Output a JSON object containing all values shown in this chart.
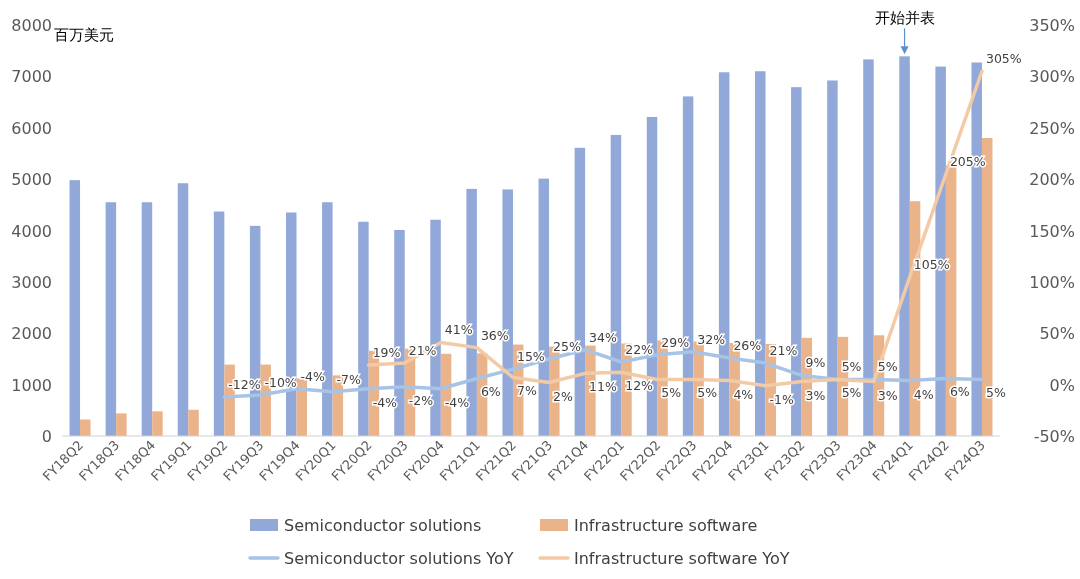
{
  "chart_data": {
    "type": "bar",
    "ylabel": "百万美元",
    "categories": [
      "FY18Q2",
      "FY18Q3",
      "FY18Q4",
      "FY19Q1",
      "FY19Q2",
      "FY19Q3",
      "FY19Q4",
      "FY20Q1",
      "FY20Q2",
      "FY20Q3",
      "FY20Q4",
      "FY21Q1",
      "FY21Q2",
      "FY21Q3",
      "FY21Q4",
      "FY22Q1",
      "FY22Q2",
      "FY22Q3",
      "FY22Q4",
      "FY23Q1",
      "FY23Q2",
      "FY23Q3",
      "FY23Q4",
      "FY24Q1",
      "FY24Q2",
      "FY24Q3"
    ],
    "series": [
      {
        "name": "Semiconductor solutions",
        "color": "#91a8d9",
        "values": [
          4980,
          4550,
          4550,
          4920,
          4370,
          4090,
          4350,
          4550,
          4170,
          4010,
          4210,
          4810,
          4800,
          5010,
          5610,
          5860,
          6210,
          6610,
          7080,
          7100,
          6790,
          6920,
          7330,
          7390,
          7190,
          7270
        ]
      },
      {
        "name": "Infrastructure software",
        "color": "#eab38a",
        "values": [
          320,
          440,
          480,
          510,
          1390,
          1390,
          1120,
          1180,
          1660,
          1700,
          1600,
          1610,
          1780,
          1740,
          1760,
          1800,
          1860,
          1840,
          1810,
          1790,
          1910,
          1930,
          1960,
          4570,
          5270,
          5800
        ]
      },
      {
        "name": "Semiconductor solutions YoY",
        "type": "line",
        "axis": "y2",
        "color": "#a7c3e6",
        "values": [
          null,
          null,
          null,
          null,
          -12,
          -10,
          -4,
          -7,
          -4,
          -2,
          -4,
          6,
          15,
          25,
          34,
          22,
          29,
          32,
          26,
          21,
          9,
          5,
          5,
          4,
          6,
          5
        ],
        "value_labels": [
          null,
          null,
          null,
          null,
          "-12%",
          "-10%",
          "-4%",
          "-7%",
          "-4%",
          "-2%",
          "-4%",
          "6%",
          "15%",
          "25%",
          "34%",
          "22%",
          "29%",
          "32%",
          "26%",
          "21%",
          "9%",
          "5%",
          "5%",
          "4%",
          "6%",
          "5%"
        ]
      },
      {
        "name": "Infrastructure software YoY",
        "type": "line",
        "axis": "y2",
        "color": "#f3caa6",
        "values": [
          null,
          null,
          null,
          null,
          null,
          null,
          null,
          null,
          19,
          21,
          41,
          36,
          7,
          2,
          11,
          12,
          5,
          5,
          4,
          -1,
          3,
          5,
          3,
          105,
          205,
          305
        ],
        "value_labels": [
          null,
          null,
          null,
          null,
          null,
          null,
          null,
          null,
          "19%",
          "21%",
          "41%",
          "36%",
          "7%",
          "2%",
          "11%",
          "12%",
          "5%",
          "5%",
          "4%",
          "-1%",
          "3%",
          "5%",
          "3%",
          "105%",
          "205%",
          "305%"
        ]
      }
    ],
    "ylim": [
      0,
      8000
    ],
    "yticks": [
      0,
      1000,
      2000,
      3000,
      4000,
      5000,
      6000,
      7000,
      8000
    ],
    "y2lim": [
      -50,
      350
    ],
    "y2ticks": [
      {
        "value": -50,
        "label": "-50%"
      },
      {
        "value": 0,
        "label": "0%"
      },
      {
        "value": 50,
        "label": "50%"
      },
      {
        "value": 100,
        "label": "100%"
      },
      {
        "value": 150,
        "label": "150%"
      },
      {
        "value": 200,
        "label": "200%"
      },
      {
        "value": 250,
        "label": "250%"
      },
      {
        "value": 300,
        "label": "300%"
      },
      {
        "value": 350,
        "label": "350%"
      }
    ],
    "annotations": [
      {
        "text": "开始并表",
        "x": "FY24Q1",
        "y": 7390
      }
    ],
    "legend": "bottom",
    "grid": false
  }
}
